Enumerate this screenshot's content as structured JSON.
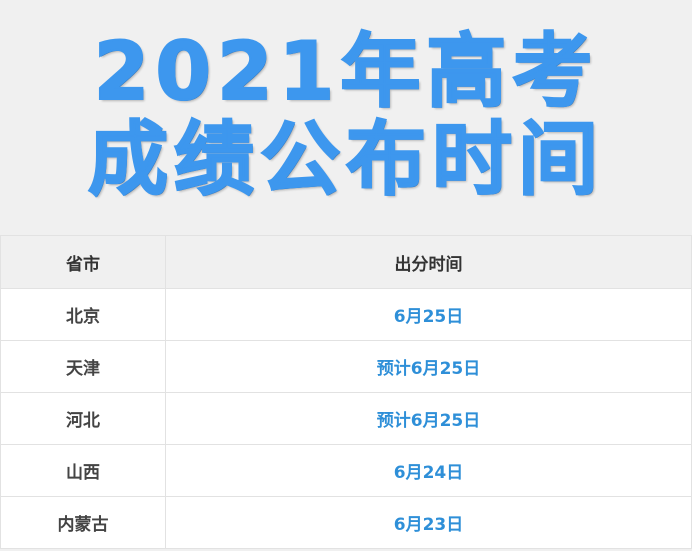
{
  "title": {
    "line1": "2021年高考",
    "line2": "成绩公布时间"
  },
  "table": {
    "headers": [
      "省市",
      "出分时间"
    ],
    "rows": [
      {
        "province": "北京",
        "date": "6月25日"
      },
      {
        "province": "天津",
        "date": "预计6月25日"
      },
      {
        "province": "河北",
        "date": "预计6月25日"
      },
      {
        "province": "山西",
        "date": "6月24日"
      },
      {
        "province": "内蒙古",
        "date": "6月23日"
      }
    ]
  },
  "colors": {
    "title": "#3d97ee",
    "date_text": "#2e8fd8"
  }
}
